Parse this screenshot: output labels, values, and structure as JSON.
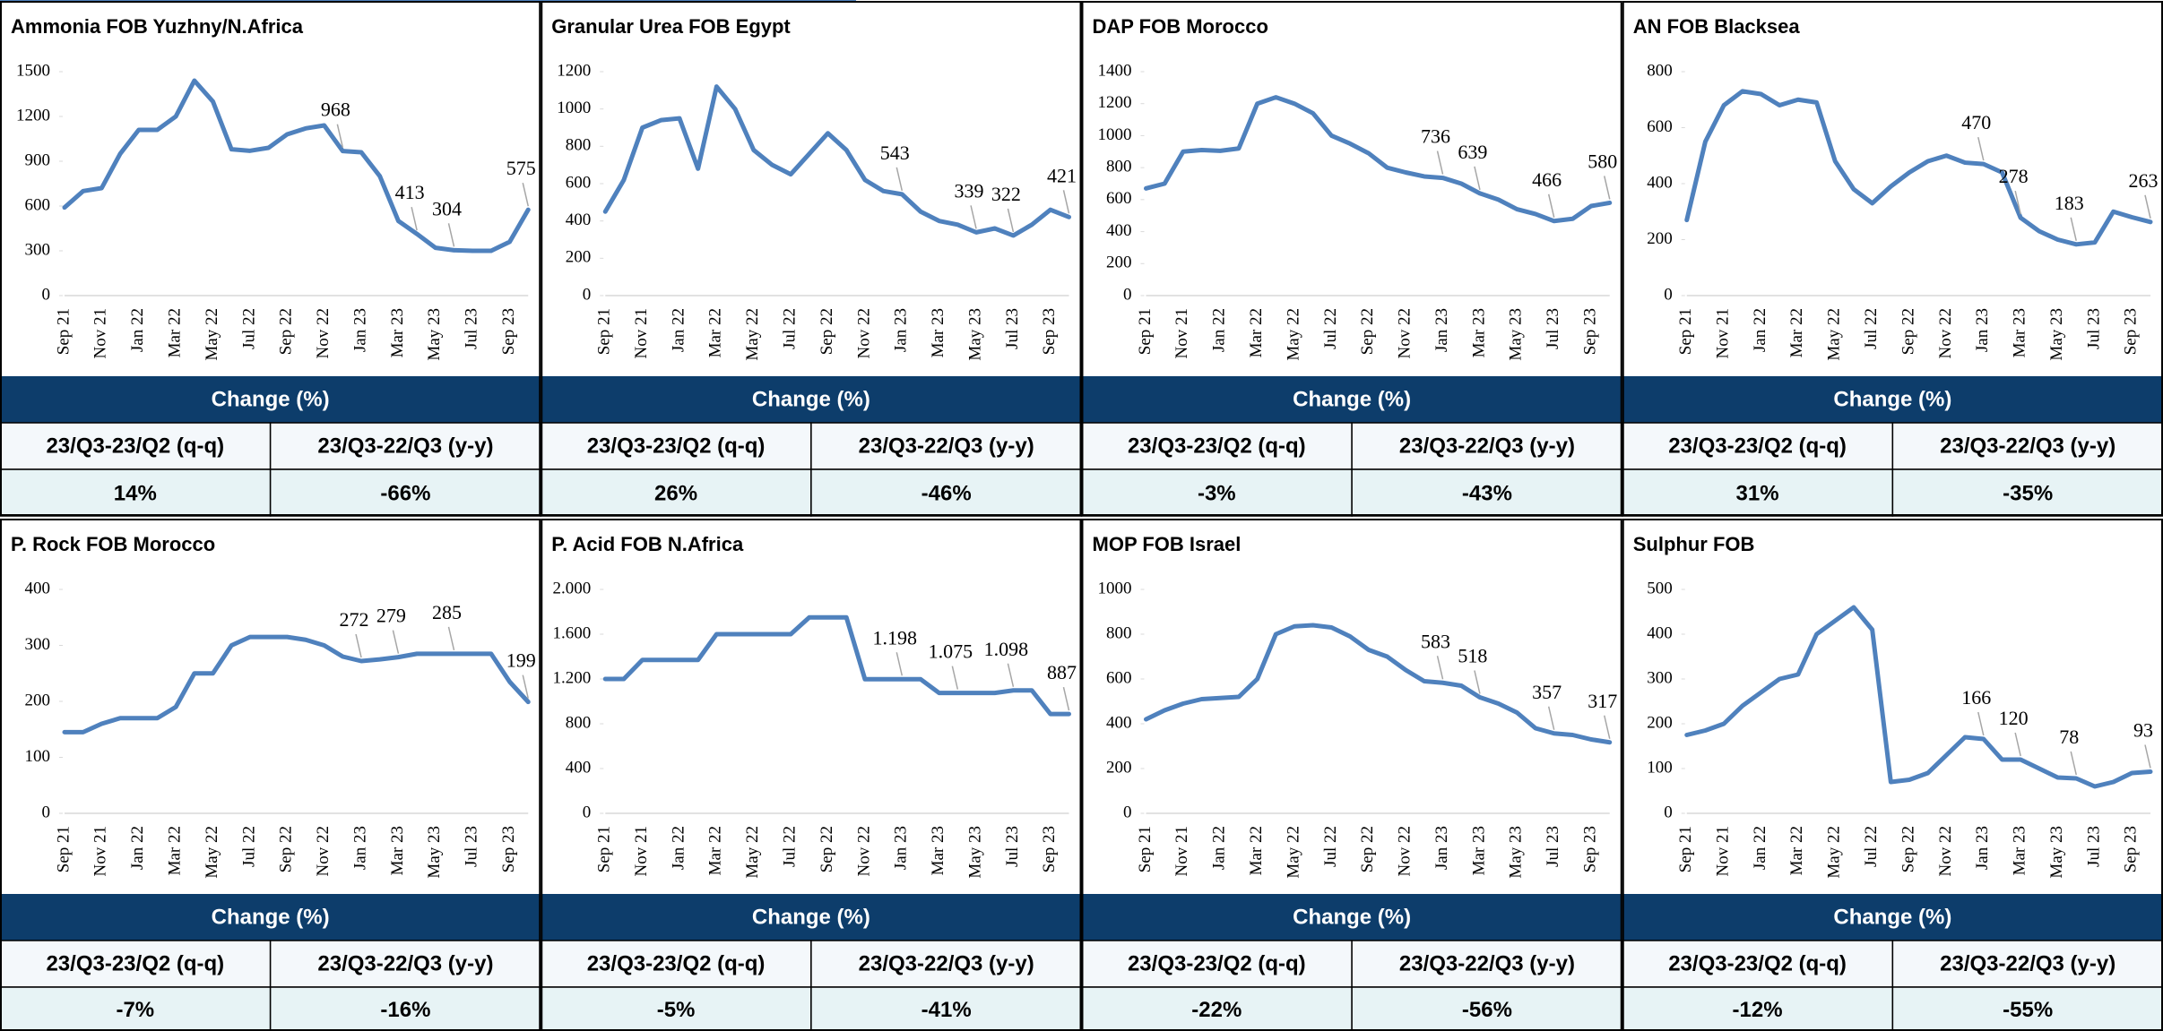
{
  "chart_data": [
    {
      "type": "line",
      "title": "Ammonia FOB Yuzhny/N.Africa",
      "categories": [
        "Sep 21",
        null,
        "Nov 21",
        null,
        "Jan 22",
        null,
        "Mar 22",
        null,
        "May 22",
        null,
        "Jul 22",
        null,
        "Sep 22",
        null,
        "Nov 22",
        null,
        "Jan 23",
        null,
        "Mar 23",
        null,
        "May 23",
        null,
        "Jul 23",
        null,
        "Sep 23",
        null
      ],
      "values": [
        590,
        700,
        720,
        950,
        1110,
        1110,
        1200,
        1440,
        1300,
        980,
        970,
        990,
        1080,
        1120,
        1140,
        968,
        960,
        800,
        500,
        413,
        320,
        304,
        300,
        300,
        360,
        575
      ],
      "value_labels": [
        null,
        null,
        null,
        null,
        null,
        null,
        null,
        null,
        null,
        null,
        null,
        null,
        null,
        null,
        null,
        "968",
        null,
        null,
        null,
        "413",
        null,
        "304",
        null,
        null,
        null,
        "575"
      ],
      "color": "#4f81bd",
      "ylim": [
        0,
        1500
      ],
      "yticks": [
        0,
        300,
        600,
        900,
        1200,
        1500
      ]
    },
    {
      "type": "line",
      "title": "Granular Urea FOB Egypt",
      "categories": [
        "Sep 21",
        null,
        "Nov 21",
        null,
        "Jan 22",
        null,
        "Mar 22",
        null,
        "May 22",
        null,
        "Jul 22",
        null,
        "Sep 22",
        null,
        "Nov 22",
        null,
        "Jan 23",
        null,
        "Mar 23",
        null,
        "May 23",
        null,
        "Jul 23",
        null,
        "Sep 23",
        null
      ],
      "values": [
        450,
        620,
        900,
        940,
        950,
        680,
        1120,
        1000,
        780,
        700,
        650,
        760,
        870,
        780,
        620,
        560,
        543,
        450,
        400,
        380,
        339,
        360,
        322,
        380,
        460,
        421
      ],
      "value_labels": [
        null,
        null,
        null,
        null,
        null,
        null,
        null,
        null,
        null,
        null,
        null,
        null,
        null,
        null,
        null,
        null,
        "543",
        null,
        null,
        null,
        "339",
        null,
        "322",
        null,
        null,
        "421"
      ],
      "color": "#4f81bd",
      "ylim": [
        0,
        1200
      ],
      "yticks": [
        0,
        200,
        400,
        600,
        800,
        1000,
        1200
      ]
    },
    {
      "type": "line",
      "title": "DAP FOB Morocco",
      "categories": [
        "Sep 21",
        null,
        "Nov 21",
        null,
        "Jan 22",
        null,
        "Mar 22",
        null,
        "May 22",
        null,
        "Jul 22",
        null,
        "Sep 22",
        null,
        "Nov 22",
        null,
        "Jan 23",
        null,
        "Mar 23",
        null,
        "May 23",
        null,
        "Jul 23",
        null,
        "Sep 23",
        null
      ],
      "values": [
        670,
        700,
        900,
        910,
        905,
        920,
        1200,
        1240,
        1200,
        1140,
        1000,
        950,
        890,
        800,
        770,
        745,
        736,
        700,
        639,
        600,
        540,
        510,
        466,
        480,
        560,
        580
      ],
      "value_labels": [
        null,
        null,
        null,
        null,
        null,
        null,
        null,
        null,
        null,
        null,
        null,
        null,
        null,
        null,
        null,
        null,
        "736",
        null,
        "639",
        null,
        null,
        null,
        "466",
        null,
        null,
        "580"
      ],
      "color": "#4f81bd",
      "ylim": [
        0,
        1400
      ],
      "yticks": [
        0,
        200,
        400,
        600,
        800,
        1000,
        1200,
        1400
      ]
    },
    {
      "type": "line",
      "title": "AN FOB Blacksea",
      "categories": [
        "Sep 21",
        null,
        "Nov 21",
        null,
        "Jan 22",
        null,
        "Mar 22",
        null,
        "May 22",
        null,
        "Jul 22",
        null,
        "Sep 22",
        null,
        "Nov 22",
        null,
        "Jan 23",
        null,
        "Mar 23",
        null,
        "May 23",
        null,
        "Jul 23",
        null,
        "Sep 23",
        null
      ],
      "values": [
        270,
        550,
        680,
        730,
        720,
        680,
        700,
        690,
        480,
        380,
        330,
        390,
        440,
        480,
        500,
        475,
        470,
        440,
        278,
        230,
        200,
        183,
        190,
        300,
        280,
        263
      ],
      "value_labels": [
        null,
        null,
        null,
        null,
        null,
        null,
        null,
        null,
        null,
        null,
        null,
        null,
        null,
        null,
        null,
        null,
        "470",
        null,
        "278",
        null,
        null,
        "183",
        null,
        null,
        null,
        "263"
      ],
      "color": "#4f81bd",
      "ylim": [
        0,
        800
      ],
      "yticks": [
        0,
        200,
        400,
        600,
        800
      ]
    },
    {
      "type": "line",
      "title": "P. Rock FOB Morocco",
      "categories": [
        "Sep 21",
        null,
        "Nov 21",
        null,
        "Jan 22",
        null,
        "Mar 22",
        null,
        "May 22",
        null,
        "Jul 22",
        null,
        "Sep 22",
        null,
        "Nov 22",
        null,
        "Jan 23",
        null,
        "Mar 23",
        null,
        "May 23",
        null,
        "Jul 23",
        null,
        "Sep 23",
        null
      ],
      "values": [
        145,
        145,
        160,
        170,
        170,
        170,
        190,
        250,
        250,
        300,
        315,
        315,
        315,
        310,
        300,
        280,
        272,
        275,
        279,
        285,
        285,
        285,
        285,
        285,
        235,
        199
      ],
      "value_labels": [
        null,
        null,
        null,
        null,
        null,
        null,
        null,
        null,
        null,
        null,
        null,
        null,
        null,
        null,
        null,
        null,
        "272",
        null,
        "279",
        null,
        null,
        "285",
        null,
        null,
        null,
        "199"
      ],
      "color": "#4f81bd",
      "ylim": [
        0,
        400
      ],
      "yticks": [
        0,
        100,
        200,
        300,
        400
      ]
    },
    {
      "type": "line",
      "title": "P. Acid FOB N.Africa",
      "categories": [
        "Sep 21",
        null,
        "Nov 21",
        null,
        "Jan 22",
        null,
        "Mar 22",
        null,
        "May 22",
        null,
        "Jul 22",
        null,
        "Sep 22",
        null,
        "Nov 22",
        null,
        "Jan 23",
        null,
        "Mar 23",
        null,
        "May 23",
        null,
        "Jul 23",
        null,
        "Sep 23",
        null
      ],
      "values": [
        1200,
        1200,
        1370,
        1370,
        1370,
        1370,
        1600,
        1600,
        1600,
        1600,
        1600,
        1750,
        1750,
        1750,
        1198,
        1198,
        1198,
        1198,
        1075,
        1075,
        1075,
        1075,
        1098,
        1098,
        887,
        887
      ],
      "value_labels": [
        null,
        null,
        null,
        null,
        null,
        null,
        null,
        null,
        null,
        null,
        null,
        null,
        null,
        null,
        null,
        null,
        "1.198",
        null,
        null,
        "1.075",
        null,
        null,
        "1.098",
        null,
        null,
        "887"
      ],
      "color": "#4f81bd",
      "ylim": [
        0,
        2000
      ],
      "yticks": [
        0,
        400,
        800,
        {
          "value": 1200,
          "label": "1.200"
        },
        {
          "value": 1600,
          "label": "1.600"
        },
        {
          "value": 2000,
          "label": "2.000"
        }
      ]
    },
    {
      "type": "line",
      "title": "MOP FOB Israel",
      "categories": [
        "Sep 21",
        null,
        "Nov 21",
        null,
        "Jan 22",
        null,
        "Mar 22",
        null,
        "May 22",
        null,
        "Jul 22",
        null,
        "Sep 22",
        null,
        "Nov 22",
        null,
        "Jan 23",
        null,
        "Mar 23",
        null,
        "May 23",
        null,
        "Jul 23",
        null,
        "Sep 23",
        null
      ],
      "values": [
        420,
        460,
        490,
        510,
        515,
        520,
        600,
        800,
        835,
        840,
        830,
        790,
        730,
        700,
        640,
        590,
        583,
        570,
        518,
        490,
        450,
        380,
        357,
        350,
        330,
        317
      ],
      "value_labels": [
        null,
        null,
        null,
        null,
        null,
        null,
        null,
        null,
        null,
        null,
        null,
        null,
        null,
        null,
        null,
        null,
        "583",
        null,
        "518",
        null,
        null,
        null,
        "357",
        null,
        null,
        "317"
      ],
      "color": "#4f81bd",
      "ylim": [
        0,
        1000
      ],
      "yticks": [
        0,
        200,
        400,
        600,
        800,
        1000
      ]
    },
    {
      "type": "line",
      "title": "Sulphur FOB",
      "categories": [
        "Sep 21",
        null,
        "Nov 21",
        null,
        "Jan 22",
        null,
        "Mar 22",
        null,
        "May 22",
        null,
        "Jul 22",
        null,
        "Sep 22",
        null,
        "Nov 22",
        null,
        "Jan 23",
        null,
        "Mar 23",
        null,
        "May 23",
        null,
        "Jul 23",
        null,
        "Sep 23",
        null
      ],
      "values": [
        175,
        185,
        200,
        240,
        270,
        300,
        310,
        400,
        430,
        460,
        410,
        70,
        75,
        90,
        130,
        170,
        166,
        120,
        120,
        100,
        80,
        78,
        60,
        70,
        90,
        93
      ],
      "value_labels": [
        null,
        null,
        null,
        null,
        null,
        null,
        null,
        null,
        null,
        null,
        null,
        null,
        null,
        null,
        null,
        null,
        "166",
        null,
        "120",
        null,
        null,
        "78",
        null,
        null,
        null,
        "93"
      ],
      "color": "#4f81bd",
      "ylim": [
        0,
        500
      ],
      "yticks": [
        0,
        100,
        200,
        300,
        400,
        500
      ]
    }
  ],
  "tables": [
    {
      "header": "Change (%)",
      "columns": [
        "23/Q3-23/Q2 (q-q)",
        "23/Q3-22/Q3 (y-y)"
      ],
      "values": [
        "14%",
        "-66%"
      ]
    },
    {
      "header": "Change (%)",
      "columns": [
        "23/Q3-23/Q2 (q-q)",
        "23/Q3-22/Q3 (y-y)"
      ],
      "values": [
        "26%",
        "-46%"
      ]
    },
    {
      "header": "Change (%)",
      "columns": [
        "23/Q3-23/Q2 (q-q)",
        "23/Q3-22/Q3 (y-y)"
      ],
      "values": [
        "-3%",
        "-43%"
      ]
    },
    {
      "header": "Change (%)",
      "columns": [
        "23/Q3-23/Q2 (q-q)",
        "23/Q3-22/Q3 (y-y)"
      ],
      "values": [
        "31%",
        "-35%"
      ]
    },
    {
      "header": "Change (%)",
      "columns": [
        "23/Q3-23/Q2 (q-q)",
        "23/Q3-22/Q3 (y-y)"
      ],
      "values": [
        "-7%",
        "-16%"
      ]
    },
    {
      "header": "Change (%)",
      "columns": [
        "23/Q3-23/Q2 (q-q)",
        "23/Q3-22/Q3 (y-y)"
      ],
      "values": [
        "-5%",
        "-41%"
      ]
    },
    {
      "header": "Change (%)",
      "columns": [
        "23/Q3-23/Q2 (q-q)",
        "23/Q3-22/Q3 (y-y)"
      ],
      "values": [
        "-22%",
        "-56%"
      ]
    },
    {
      "header": "Change (%)",
      "columns": [
        "23/Q3-23/Q2 (q-q)",
        "23/Q3-22/Q3 (y-y)"
      ],
      "values": [
        "-12%",
        "-55%"
      ]
    }
  ]
}
